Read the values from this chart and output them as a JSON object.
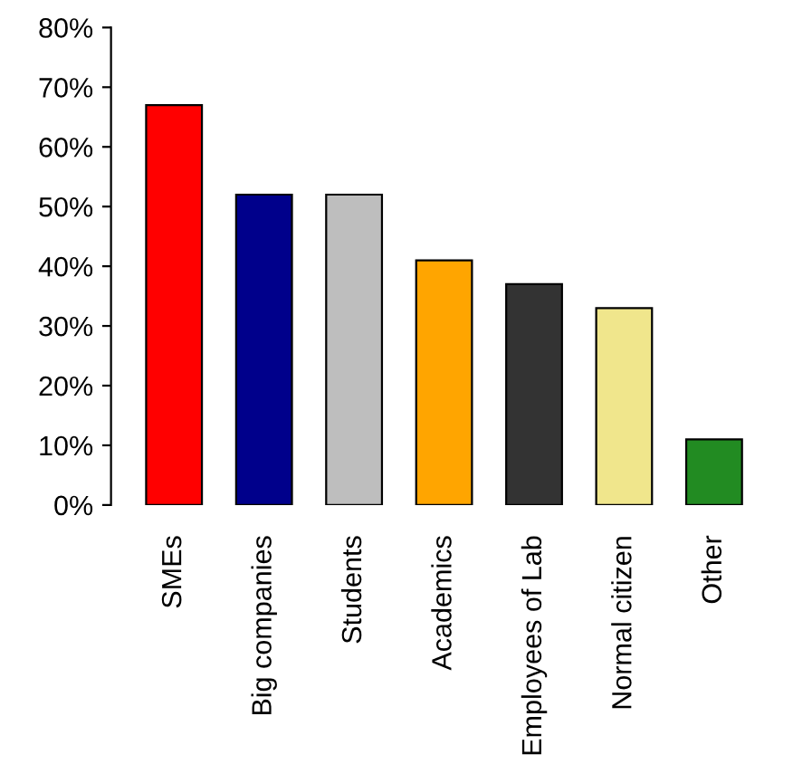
{
  "chart_data": {
    "type": "bar",
    "categories": [
      "SMEs",
      "Big companies",
      "Students",
      "Academics",
      "Employees of Lab",
      "Normal citizen",
      "Other"
    ],
    "values": [
      67,
      52,
      52,
      41,
      37,
      33,
      11
    ],
    "colors": [
      "#ff0000",
      "#00008b",
      "#bebebe",
      "#ffa500",
      "#333333",
      "#f0e68c",
      "#228b22"
    ],
    "ylim": [
      0,
      80
    ],
    "yticks": [
      {
        "value": 0,
        "label": "0%"
      },
      {
        "value": 10,
        "label": "10%"
      },
      {
        "value": 20,
        "label": "20%"
      },
      {
        "value": 30,
        "label": "30%"
      },
      {
        "value": 40,
        "label": "40%"
      },
      {
        "value": 50,
        "label": "50%"
      },
      {
        "value": 60,
        "label": "60%"
      },
      {
        "value": 70,
        "label": "70%"
      },
      {
        "value": 80,
        "label": "80%"
      }
    ],
    "grid": false,
    "legend": false
  }
}
